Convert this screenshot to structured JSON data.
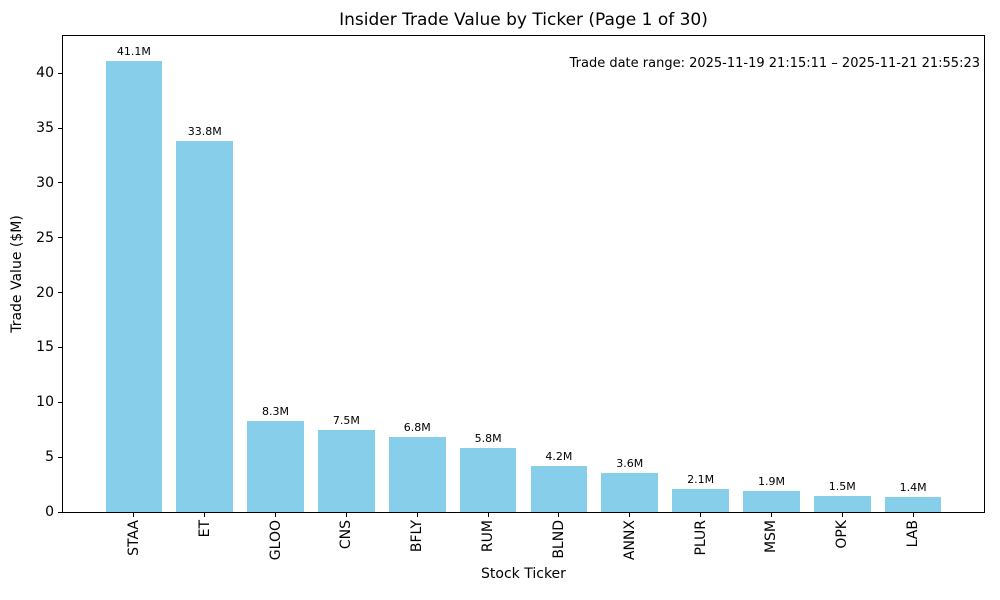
{
  "chart_data": {
    "type": "bar",
    "title": "Insider Trade Value by Ticker (Page 1 of 30)",
    "xlabel": "Stock Ticker",
    "ylabel": "Trade Value ($M)",
    "annotation": "Trade date range: 2025-11-19 21:15:11 – 2025-11-21 21:55:23",
    "categories": [
      "STAA",
      "ET",
      "GLOO",
      "CNS",
      "BFLY",
      "RUM",
      "BLND",
      "ANNX",
      "PLUR",
      "MSM",
      "OPK",
      "LAB"
    ],
    "values": [
      41.1,
      33.8,
      8.3,
      7.5,
      6.8,
      5.8,
      4.2,
      3.6,
      2.1,
      1.9,
      1.5,
      1.4
    ],
    "bar_labels": [
      "41.1M",
      "33.8M",
      "8.3M",
      "7.5M",
      "6.8M",
      "5.8M",
      "4.2M",
      "3.6M",
      "2.1M",
      "1.9M",
      "1.5M",
      "1.4M"
    ],
    "y_ticks": [
      0,
      5,
      10,
      15,
      20,
      25,
      30,
      35,
      40
    ],
    "ylim": [
      0,
      43.4
    ],
    "xlim": [
      -1,
      12
    ],
    "bar_width": 0.8,
    "bar_color": "#87CEEB",
    "grid": false,
    "legend": "none"
  }
}
